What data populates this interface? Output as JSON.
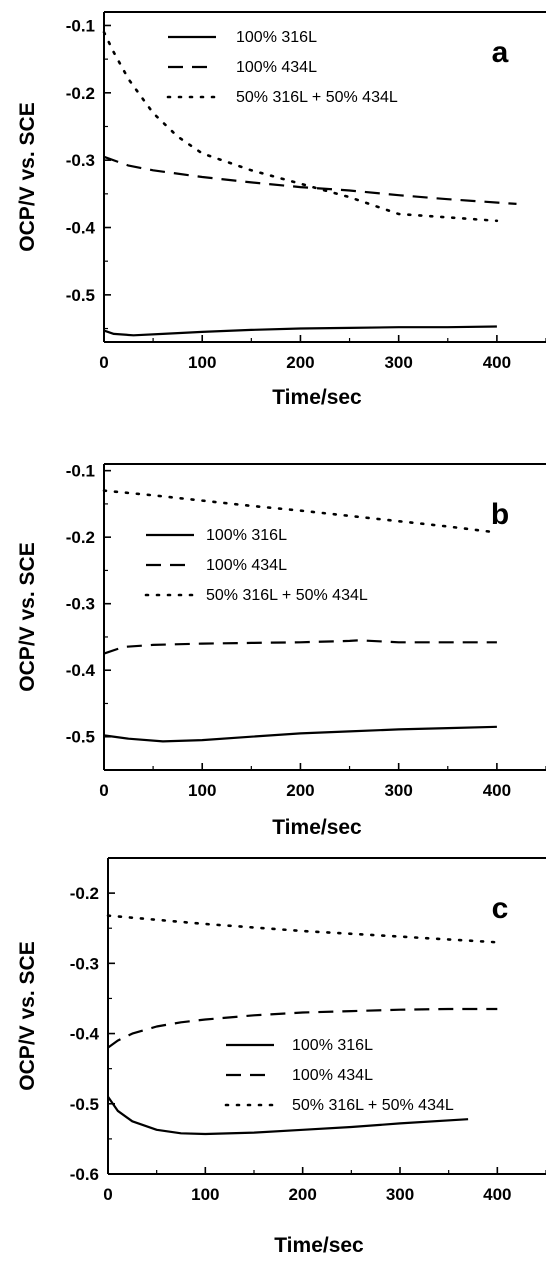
{
  "chart_data": [
    {
      "type": "line",
      "panel_label": "a",
      "xlabel": "Time/sec",
      "ylabel": "OCP/V vs. SCE",
      "xlim": [
        0,
        450
      ],
      "ylim": [
        -0.57,
        -0.08
      ],
      "xticks": [
        0,
        100,
        200,
        300,
        400
      ],
      "yticks": [
        -0.5,
        -0.4,
        -0.3,
        -0.2,
        -0.1
      ],
      "xtick_labels": [
        "0",
        "100",
        "200",
        "300",
        "400"
      ],
      "ytick_labels": [
        "-0.5",
        "-0.4",
        "-0.3",
        "-0.2",
        "-0.1"
      ],
      "legend_position": "top-center",
      "series": [
        {
          "name": "100% 316L",
          "style": "solid",
          "x": [
            0,
            10,
            30,
            60,
            100,
            150,
            200,
            250,
            300,
            350,
            400
          ],
          "y": [
            -0.553,
            -0.558,
            -0.56,
            -0.558,
            -0.555,
            -0.552,
            -0.55,
            -0.549,
            -0.548,
            -0.548,
            -0.547
          ]
        },
        {
          "name": "100% 434L",
          "style": "dashed",
          "x": [
            0,
            25,
            50,
            100,
            150,
            200,
            250,
            300,
            350,
            420
          ],
          "y": [
            -0.295,
            -0.308,
            -0.315,
            -0.325,
            -0.333,
            -0.34,
            -0.345,
            -0.352,
            -0.358,
            -0.365
          ]
        },
        {
          "name": "50% 316L + 50% 434L",
          "style": "dotted",
          "x": [
            0,
            10,
            25,
            50,
            75,
            100,
            150,
            200,
            250,
            300,
            350,
            400
          ],
          "y": [
            -0.11,
            -0.14,
            -0.18,
            -0.23,
            -0.265,
            -0.29,
            -0.315,
            -0.335,
            -0.355,
            -0.38,
            -0.385,
            -0.39
          ]
        }
      ]
    },
    {
      "type": "line",
      "panel_label": "b",
      "xlabel": "Time/sec",
      "ylabel": "OCP/V vs. SCE",
      "xlim": [
        0,
        450
      ],
      "ylim": [
        -0.55,
        -0.09
      ],
      "xticks": [
        0,
        100,
        200,
        300,
        400
      ],
      "yticks": [
        -0.5,
        -0.4,
        -0.3,
        -0.2,
        -0.1
      ],
      "xtick_labels": [
        "0",
        "100",
        "200",
        "300",
        "400"
      ],
      "ytick_labels": [
        "-0.5",
        "-0.4",
        "-0.3",
        "-0.2",
        "-0.1"
      ],
      "legend_position": "center",
      "series": [
        {
          "name": "100% 316L",
          "style": "solid",
          "x": [
            0,
            25,
            60,
            100,
            150,
            200,
            250,
            300,
            350,
            400
          ],
          "y": [
            -0.498,
            -0.503,
            -0.507,
            -0.505,
            -0.5,
            -0.495,
            -0.492,
            -0.489,
            -0.487,
            -0.485
          ]
        },
        {
          "name": "100% 434L",
          "style": "dashed",
          "x": [
            0,
            20,
            50,
            100,
            150,
            200,
            250,
            260,
            300,
            350,
            400
          ],
          "y": [
            -0.375,
            -0.365,
            -0.362,
            -0.36,
            -0.359,
            -0.358,
            -0.356,
            -0.355,
            -0.358,
            -0.358,
            -0.358
          ]
        },
        {
          "name": "50% 316L + 50% 434L",
          "style": "dotted",
          "x": [
            0,
            50,
            100,
            150,
            200,
            250,
            300,
            350,
            400
          ],
          "y": [
            -0.13,
            -0.137,
            -0.145,
            -0.153,
            -0.16,
            -0.168,
            -0.176,
            -0.184,
            -0.193
          ]
        }
      ]
    },
    {
      "type": "line",
      "panel_label": "c",
      "xlabel": "Time/sec",
      "ylabel": "OCP/V vs. SCE",
      "xlim": [
        0,
        450
      ],
      "ylim": [
        -0.6,
        -0.15
      ],
      "xticks": [
        0,
        100,
        200,
        300,
        400
      ],
      "yticks": [
        -0.6,
        -0.5,
        -0.4,
        -0.3,
        -0.2
      ],
      "xtick_labels": [
        "0",
        "100",
        "200",
        "300",
        "400"
      ],
      "ytick_labels": [
        "-0.6",
        "-0.5",
        "-0.4",
        "-0.3",
        "-0.2"
      ],
      "legend_position": "center-right",
      "series": [
        {
          "name": "100% 316L",
          "style": "solid",
          "x": [
            0,
            10,
            25,
            50,
            75,
            100,
            150,
            200,
            250,
            300,
            370
          ],
          "y": [
            -0.49,
            -0.51,
            -0.525,
            -0.537,
            -0.542,
            -0.543,
            -0.541,
            -0.537,
            -0.533,
            -0.528,
            -0.522
          ]
        },
        {
          "name": "100% 434L",
          "style": "dashed",
          "x": [
            0,
            10,
            25,
            50,
            75,
            100,
            150,
            200,
            250,
            300,
            350,
            400
          ],
          "y": [
            -0.42,
            -0.41,
            -0.4,
            -0.39,
            -0.384,
            -0.38,
            -0.374,
            -0.37,
            -0.368,
            -0.366,
            -0.365,
            -0.365
          ]
        },
        {
          "name": "50% 316L + 50% 434L",
          "style": "dotted",
          "x": [
            0,
            50,
            100,
            150,
            200,
            250,
            300,
            350,
            400
          ],
          "y": [
            -0.232,
            -0.238,
            -0.244,
            -0.249,
            -0.254,
            -0.258,
            -0.262,
            -0.266,
            -0.27
          ]
        }
      ]
    }
  ]
}
